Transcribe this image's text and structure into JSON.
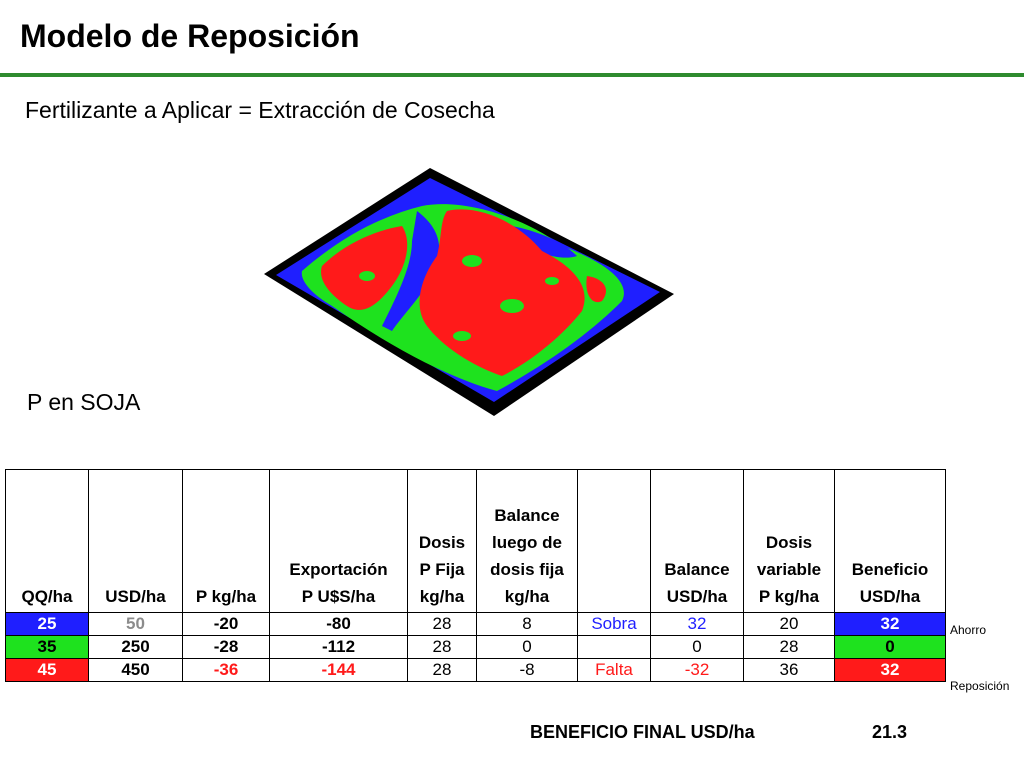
{
  "title": "Modelo de Reposición",
  "subtitle": "Fertilizante a Aplicar = Extracción de Cosecha",
  "map_label": "P en SOJA",
  "colors": {
    "rule": "#2e8b2e",
    "blue": "#1f1fff",
    "green": "#1ee21e",
    "red": "#ff1a1a",
    "text_blue": "#1f1fff",
    "text_red": "#ff1a1a",
    "gray": "#8c8c8c"
  },
  "table": {
    "headers": [
      [
        "QQ/ha"
      ],
      [
        "USD/ha"
      ],
      [
        "P kg/ha"
      ],
      [
        "Exportación",
        "P U$S/ha"
      ],
      [
        "Dosis",
        "P Fija",
        "kg/ha"
      ],
      [
        "Balance",
        "luego de",
        "dosis fija",
        "kg/ha"
      ],
      [
        ""
      ],
      [
        "Balance",
        "USD/ha"
      ],
      [
        "Dosis",
        "variable",
        "P kg/ha"
      ],
      [
        "Beneficio",
        "USD/ha"
      ]
    ],
    "rows": [
      [
        "25",
        "50",
        "-20",
        "-80",
        "28",
        "8",
        "Sobra",
        "32",
        "20",
        "32"
      ],
      [
        "35",
        "250",
        "-28",
        "-112",
        "28",
        "0",
        "",
        "0",
        "28",
        "0"
      ],
      [
        "45",
        "450",
        "-36",
        "-144",
        "28",
        "-8",
        "Falta",
        "-32",
        "36",
        "32"
      ]
    ],
    "notes": [
      "Ahorro",
      "",
      "Reposición"
    ]
  },
  "final": {
    "label": "BENEFICIO FINAL USD/ha",
    "value": "21.3"
  }
}
